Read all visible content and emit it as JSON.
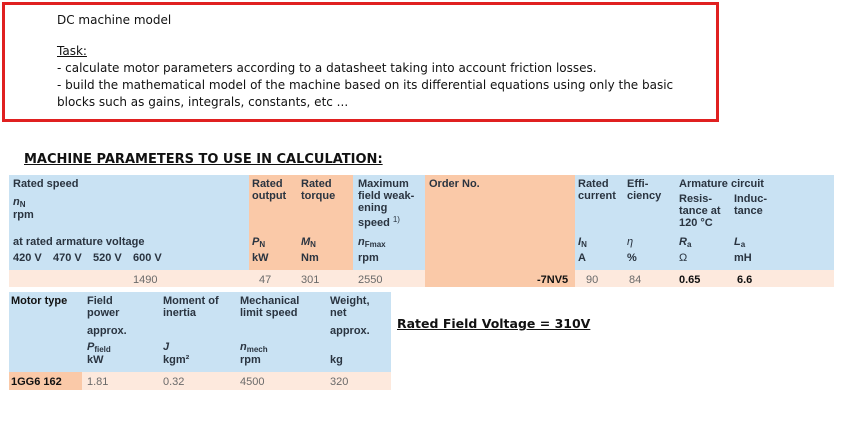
{
  "task_box": {
    "title": "DC machine model",
    "task_label": "Task:",
    "line1": "- calculate motor parameters according to a datasheet taking into account friction losses.",
    "line2": "- build the mathematical model of the machine based on its differential equations using only the basic",
    "line3": "blocks such as gains, integrals, constants, etc ..."
  },
  "section_title": "MACHINE PARAMETERS TO USE IN CALCULATION:",
  "field_voltage": "Rated Field Voltage = 310V",
  "table1": {
    "rated_speed": {
      "label": "Rated speed",
      "symbol": "n",
      "symbol_sub": "N",
      "unit": "rpm",
      "at_voltage": "at rated armature voltage",
      "voltages": [
        "420 V",
        "470 V",
        "520 V",
        "600 V"
      ],
      "value": "1490"
    },
    "rated_output": {
      "label1": "Rated",
      "label2": "output",
      "symbol": "P",
      "symbol_sub": "N",
      "unit": "kW",
      "value": "47"
    },
    "rated_torque": {
      "label1": "Rated",
      "label2": "torque",
      "symbol": "M",
      "symbol_sub": "N",
      "unit": "Nm",
      "value": "301"
    },
    "max_speed": {
      "label1": "Maximum",
      "label2": "field weak-",
      "label3": "ening",
      "label4": "speed",
      "footnote": "1)",
      "symbol": "n",
      "symbol_sub": "Fmax",
      "unit": "rpm",
      "value": "2550"
    },
    "order_no": {
      "label": "Order No.",
      "value": "-7NV5"
    },
    "rated_current": {
      "label1": "Rated",
      "label2": "current",
      "symbol": "I",
      "symbol_sub": "N",
      "unit": "A",
      "value": "90"
    },
    "efficiency": {
      "label1": "Effi-",
      "label2": "ciency",
      "symbol": "η",
      "unit": "%",
      "value": "84"
    },
    "armature": {
      "label": "Armature circuit",
      "resistance": {
        "label1": "Resis-",
        "label2": "tance at",
        "label3": "120 °C",
        "symbol": "R",
        "symbol_sub": "a",
        "unit": "Ω",
        "value": "0.65"
      },
      "inductance": {
        "label1": "Induc-",
        "label2": "tance",
        "symbol": "L",
        "symbol_sub": "a",
        "unit": "mH",
        "value": "6.6"
      }
    }
  },
  "table2": {
    "motor_type": {
      "label": "Motor type",
      "value": "1GG6 162"
    },
    "field_power": {
      "label1": "Field",
      "label2": "power",
      "label3": "approx.",
      "symbol": "P",
      "symbol_sub": "field",
      "unit": "kW",
      "value": "1.81"
    },
    "inertia": {
      "label1": "Moment of",
      "label2": "inertia",
      "symbol": "J",
      "unit": "kgm²",
      "value": "0.32"
    },
    "mech_limit": {
      "label1": "Mechanical",
      "label2": "limit speed",
      "symbol": "n",
      "symbol_sub": "mech",
      "unit": "rpm",
      "value": "4500"
    },
    "weight": {
      "label1": "Weight,",
      "label2": "net",
      "label3": "approx.",
      "unit": "kg",
      "value": "320"
    }
  }
}
